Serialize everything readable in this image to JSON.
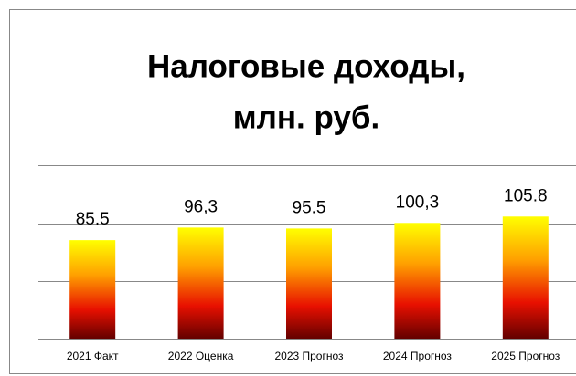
{
  "chart_data": {
    "type": "bar",
    "title": [
      "Налоговые доходы,",
      "млн. руб."
    ],
    "categories": [
      "2021 Факт",
      "2022 Оценка",
      "2023 Прогноз",
      "2024 Прогноз",
      "2025 Прогноз"
    ],
    "values": [
      85.5,
      96.3,
      95.5,
      100.3,
      105.8
    ],
    "value_labels": [
      "85.5",
      "96,3",
      "95.5",
      "100,3",
      "105.8"
    ],
    "ylim": [
      0,
      150
    ],
    "yticks": [
      0,
      50,
      100,
      150
    ],
    "grid": true
  }
}
